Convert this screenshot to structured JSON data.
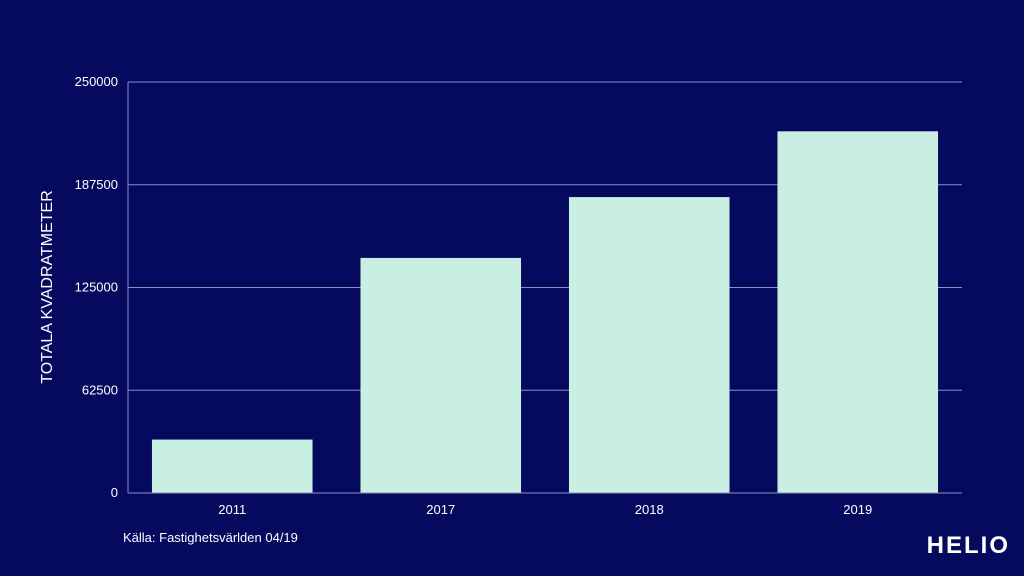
{
  "chart_data": {
    "type": "bar",
    "categories": [
      "2011",
      "2017",
      "2018",
      "2019"
    ],
    "values": [
      32500,
      143000,
      180000,
      220000
    ],
    "title": "",
    "xlabel": "",
    "ylabel": "TOTALA KVADRATMETER",
    "ylim": [
      0,
      250000
    ],
    "yticks": [
      "0",
      "62500",
      "125000",
      "187500",
      "250000"
    ],
    "grid": true,
    "legend": "none"
  },
  "colors": {
    "background": "#050a5f",
    "bar": "#c8efe2",
    "grid": "#8a8fc0",
    "text": "#ffffff"
  },
  "source": "Källa: Fastighetsvärlden 04/19",
  "logo": "HELIO"
}
